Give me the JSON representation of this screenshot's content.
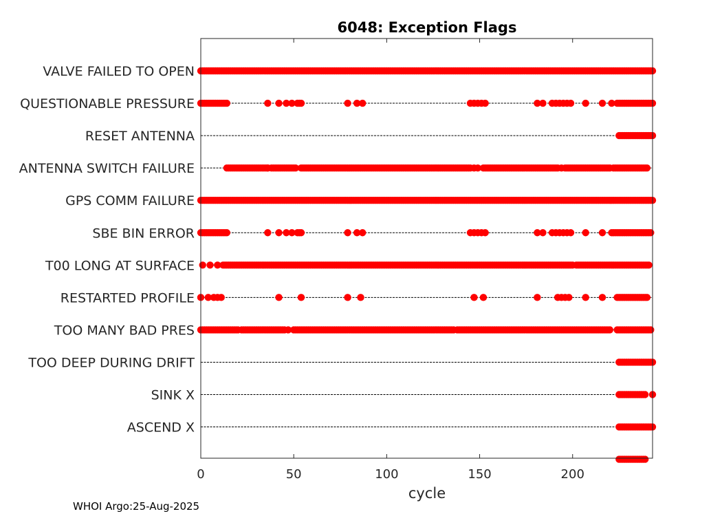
{
  "chart_data": {
    "type": "scatter",
    "title": "6048: Exception Flags",
    "xlabel": "cycle",
    "ylabel": "",
    "xlim": [
      0,
      243
    ],
    "xticks": [
      0,
      50,
      100,
      150,
      200
    ],
    "marker_color": "#ff0000",
    "line_color": "#000000",
    "footer": "WHOI Argo:25-Aug-2025",
    "series": [
      {
        "name": "VALVE FAILED TO OPEN",
        "line_end": 243,
        "ranges": [
          [
            0,
            243,
            1
          ]
        ],
        "points": []
      },
      {
        "name": "QUESTIONABLE PRESSURE",
        "line_end": 243,
        "ranges": [
          [
            0,
            14,
            1
          ],
          [
            224,
            243,
            1
          ]
        ],
        "points": [
          36,
          42,
          46,
          49,
          52,
          53,
          54,
          79,
          84,
          87,
          145,
          147,
          149,
          151,
          153,
          181,
          184,
          189,
          191,
          193,
          195,
          197,
          199,
          207,
          216,
          221
        ]
      },
      {
        "name": "RESET ANTENNA",
        "line_end": 243,
        "ranges": [
          [
            225,
            243,
            1
          ]
        ],
        "points": []
      },
      {
        "name": "ANTENNA SWITCH FAILURE",
        "line_end": 243,
        "ranges": [
          [
            14,
            36,
            1
          ],
          [
            38,
            50,
            1
          ],
          [
            54,
            145,
            1
          ],
          [
            152,
            192,
            1
          ],
          [
            196,
            220,
            1
          ],
          [
            222,
            240,
            1
          ]
        ],
        "points": [
          36,
          51,
          147,
          149,
          194
        ]
      },
      {
        "name": "GPS COMM FAILURE",
        "line_end": 243,
        "ranges": [
          [
            0,
            243,
            1
          ]
        ],
        "points": []
      },
      {
        "name": "SBE BIN ERROR",
        "line_end": 243,
        "ranges": [
          [
            0,
            14,
            1
          ],
          [
            221,
            242,
            1
          ]
        ],
        "points": [
          36,
          42,
          46,
          49,
          52,
          53,
          54,
          79,
          84,
          87,
          145,
          147,
          149,
          151,
          153,
          181,
          184,
          189,
          191,
          193,
          195,
          197,
          199,
          207,
          216
        ]
      },
      {
        "name": "T00 LONG AT SURFACE",
        "line_end": 243,
        "ranges": [
          [
            12,
            200,
            1
          ],
          [
            202,
            241,
            1
          ]
        ],
        "points": [
          1,
          5,
          9
        ]
      },
      {
        "name": "RESTARTED PROFILE",
        "line_end": 243,
        "ranges": [
          [
            224,
            240,
            1
          ]
        ],
        "points": [
          0,
          4,
          7,
          9,
          11,
          42,
          54,
          79,
          86,
          147,
          152,
          181,
          192,
          194,
          196,
          198,
          207,
          216
        ]
      },
      {
        "name": "TOO MANY BAD PRES",
        "line_end": 243,
        "ranges": [
          [
            0,
            20,
            1
          ],
          [
            22,
            45,
            1
          ],
          [
            50,
            136,
            1
          ],
          [
            138,
            220,
            1
          ],
          [
            224,
            242,
            1
          ]
        ],
        "points": [
          47
        ]
      },
      {
        "name": "TOO DEEP DURING DRIFT",
        "line_end": 243,
        "ranges": [
          [
            225,
            243,
            1
          ]
        ],
        "points": []
      },
      {
        "name": "SINK X",
        "line_end": 243,
        "ranges": [
          [
            225,
            239,
            1
          ]
        ],
        "points": [
          243
        ]
      },
      {
        "name": "ASCEND X",
        "line_end": 243,
        "ranges": [
          [
            225,
            243,
            1
          ]
        ],
        "points": []
      },
      {
        "name": "",
        "line_end": null,
        "ranges": [
          [
            225,
            239,
            1
          ]
        ],
        "points": []
      }
    ]
  }
}
